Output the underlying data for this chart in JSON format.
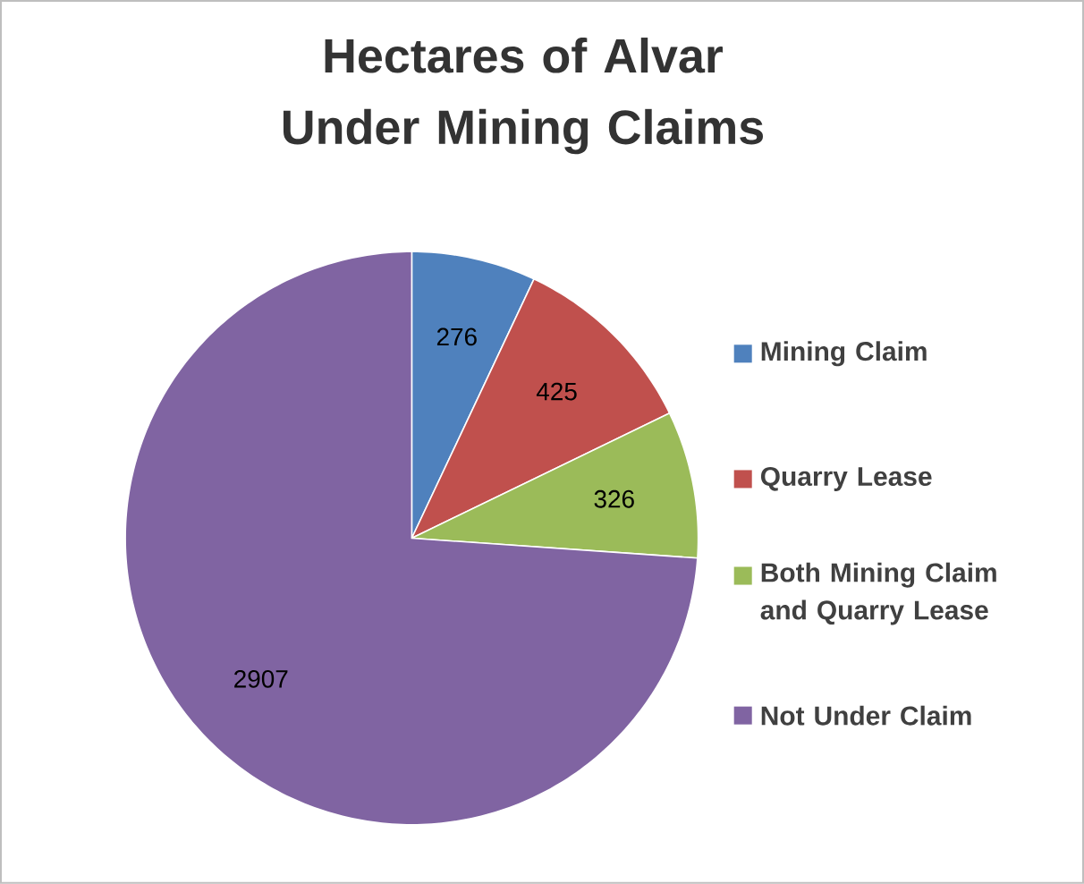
{
  "chart_data": {
    "type": "pie",
    "title": "Hectares of Alvar Under Mining Claims",
    "categories": [
      "Mining Claim",
      "Quarry Lease",
      "Both Mining Claim and Quarry Lease",
      "Not Under Claim"
    ],
    "values": [
      276,
      425,
      326,
      2907
    ],
    "colors": [
      "#4f81bd",
      "#c0504d",
      "#9bbb59",
      "#8064a2"
    ],
    "value_labels": [
      "276",
      "425",
      "326",
      "2907"
    ],
    "legend": "right"
  }
}
